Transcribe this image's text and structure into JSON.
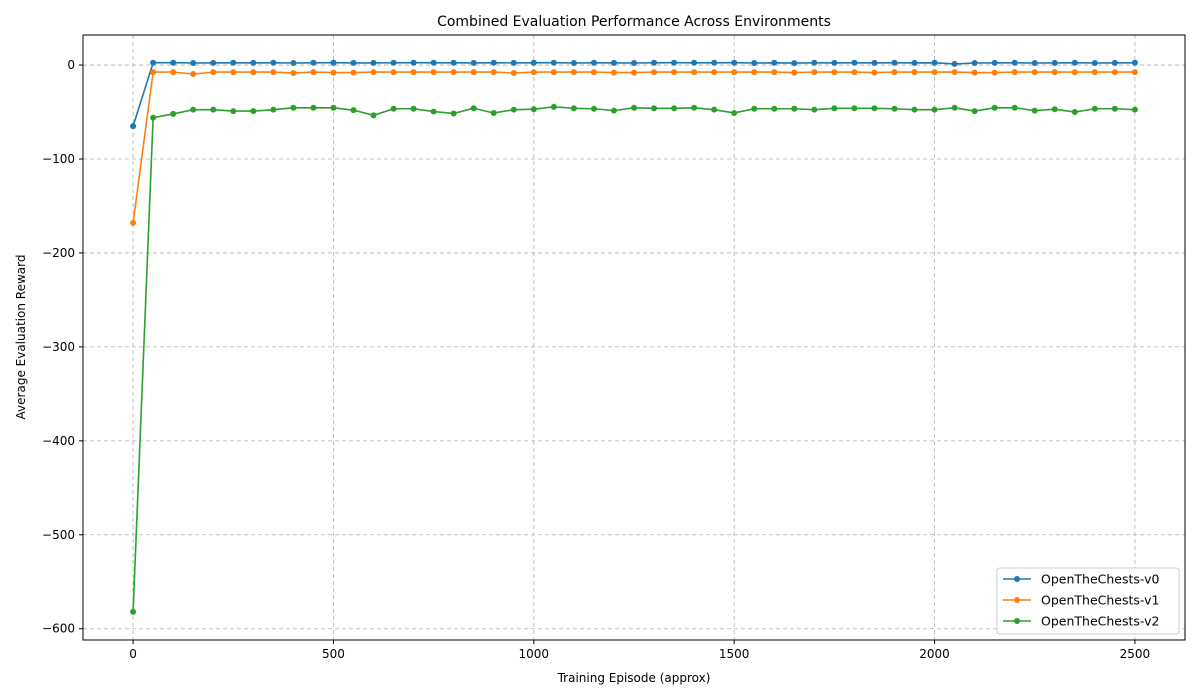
{
  "chart_data": {
    "type": "line",
    "title": "Combined Evaluation Performance Across Environments",
    "xlabel": "Training Episode (approx)",
    "ylabel": "Average Evaluation Reward",
    "xlim": [
      -125,
      2625
    ],
    "ylim": [
      -612,
      32
    ],
    "xticks": [
      0,
      500,
      1000,
      1500,
      2000,
      2500
    ],
    "yticks": [
      0,
      -100,
      -200,
      -300,
      -400,
      -500,
      -600
    ],
    "xtick_labels": [
      "0",
      "500",
      "1000",
      "1500",
      "2000",
      "2500"
    ],
    "ytick_labels": [
      "0",
      "−100",
      "−200",
      "−300",
      "−400",
      "−500",
      "−600"
    ],
    "grid": true,
    "legend_position": "lower-right",
    "x": [
      0,
      50,
      100,
      150,
      200,
      250,
      300,
      350,
      400,
      450,
      500,
      550,
      600,
      650,
      700,
      750,
      800,
      850,
      900,
      950,
      1000,
      1050,
      1100,
      1150,
      1200,
      1250,
      1300,
      1350,
      1400,
      1450,
      1500,
      1550,
      1600,
      1650,
      1700,
      1750,
      1800,
      1850,
      1900,
      1950,
      2000,
      2050,
      2100,
      2150,
      2200,
      2250,
      2300,
      2350,
      2400,
      2450,
      2500
    ],
    "series": [
      {
        "name": "OpenTheChests-v0",
        "color": "#1f77b4",
        "values": [
          -65,
          2.5,
          2.5,
          2.2,
          2.3,
          2.4,
          2.3,
          2.4,
          2.2,
          2.4,
          2.5,
          2.3,
          2.3,
          2.4,
          2.5,
          2.4,
          2.4,
          2.3,
          2.4,
          2.3,
          2.4,
          2.5,
          2.2,
          2.4,
          2.3,
          2.2,
          2.4,
          2.5,
          2.4,
          2.4,
          2.5,
          2.2,
          2.4,
          2.1,
          2.4,
          2.3,
          2.4,
          2.3,
          2.4,
          2.3,
          2.4,
          1.2,
          2.2,
          2.3,
          2.4,
          2.2,
          2.3,
          2.4,
          2.2,
          2.3,
          2.4
        ]
      },
      {
        "name": "OpenTheChests-v1",
        "color": "#ff7f0e",
        "values": [
          -168,
          -7.5,
          -7.5,
          -9.5,
          -7.5,
          -7.5,
          -7.5,
          -7.5,
          -8.5,
          -7.5,
          -8,
          -8,
          -7.5,
          -7.5,
          -7.5,
          -7.5,
          -7.5,
          -7.5,
          -7.5,
          -8.5,
          -7.5,
          -7.5,
          -7.5,
          -7.5,
          -8,
          -8,
          -7.5,
          -7.5,
          -7.5,
          -7.5,
          -7.5,
          -7.5,
          -7.5,
          -8,
          -7.5,
          -7.5,
          -7.5,
          -8,
          -7.5,
          -7.5,
          -7.5,
          -7.5,
          -8,
          -8,
          -7.5,
          -7.5,
          -7.5,
          -7.5,
          -7.5,
          -7.5,
          -7.5
        ]
      },
      {
        "name": "OpenTheChests-v2",
        "color": "#2ca02c",
        "values": [
          -582,
          -56,
          -52,
          -47.5,
          -47.5,
          -49,
          -49,
          -47.5,
          -45.5,
          -45.5,
          -45.5,
          -48,
          -53.5,
          -46.5,
          -46.5,
          -49.5,
          -51.5,
          -46,
          -51,
          -47.5,
          -47,
          -44.5,
          -46,
          -46.5,
          -48.5,
          -45.5,
          -46,
          -46,
          -45.5,
          -47.5,
          -51,
          -46.5,
          -46.5,
          -46.5,
          -47.5,
          -46,
          -46,
          -46,
          -46.5,
          -47.5,
          -47.5,
          -45.5,
          -49,
          -45.5,
          -45.5,
          -48.5,
          -47,
          -50,
          -46.5,
          -46.5,
          -47.5
        ]
      }
    ]
  }
}
